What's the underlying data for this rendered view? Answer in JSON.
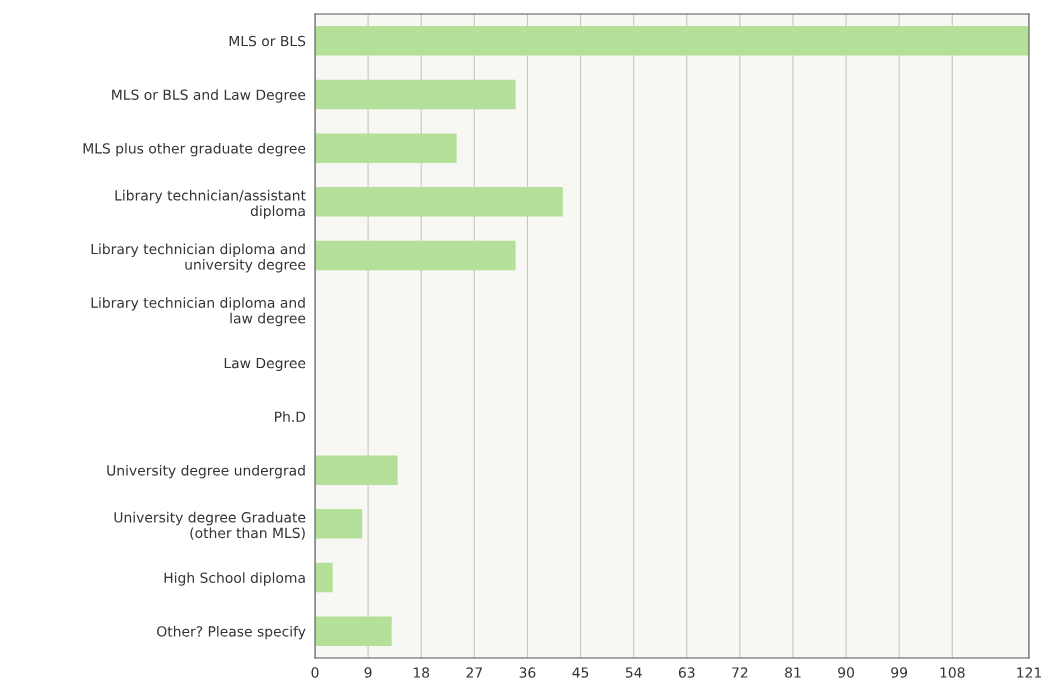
{
  "chart_data": {
    "type": "bar",
    "orientation": "horizontal",
    "categories": [
      "MLS or BLS",
      "MLS or BLS and Law Degree",
      "MLS plus other graduate degree",
      "Library technician/assistant\ndiploma",
      "Library technician diploma and\nuniversity degree",
      "Library technician diploma and\nlaw degree",
      "Law Degree",
      "Ph.D",
      "University degree undergrad",
      "University degree Graduate\n(other than MLS)",
      "High School diploma",
      "Other? Please specify"
    ],
    "values": [
      121,
      34,
      24,
      42,
      34,
      0,
      0,
      0,
      14,
      8,
      3,
      13
    ],
    "color": "#b4e09a",
    "xlim": [
      0,
      121
    ],
    "xticks": [
      0,
      9,
      18,
      27,
      36,
      45,
      54,
      63,
      72,
      81,
      90,
      99,
      108,
      121
    ],
    "grid": "x"
  }
}
